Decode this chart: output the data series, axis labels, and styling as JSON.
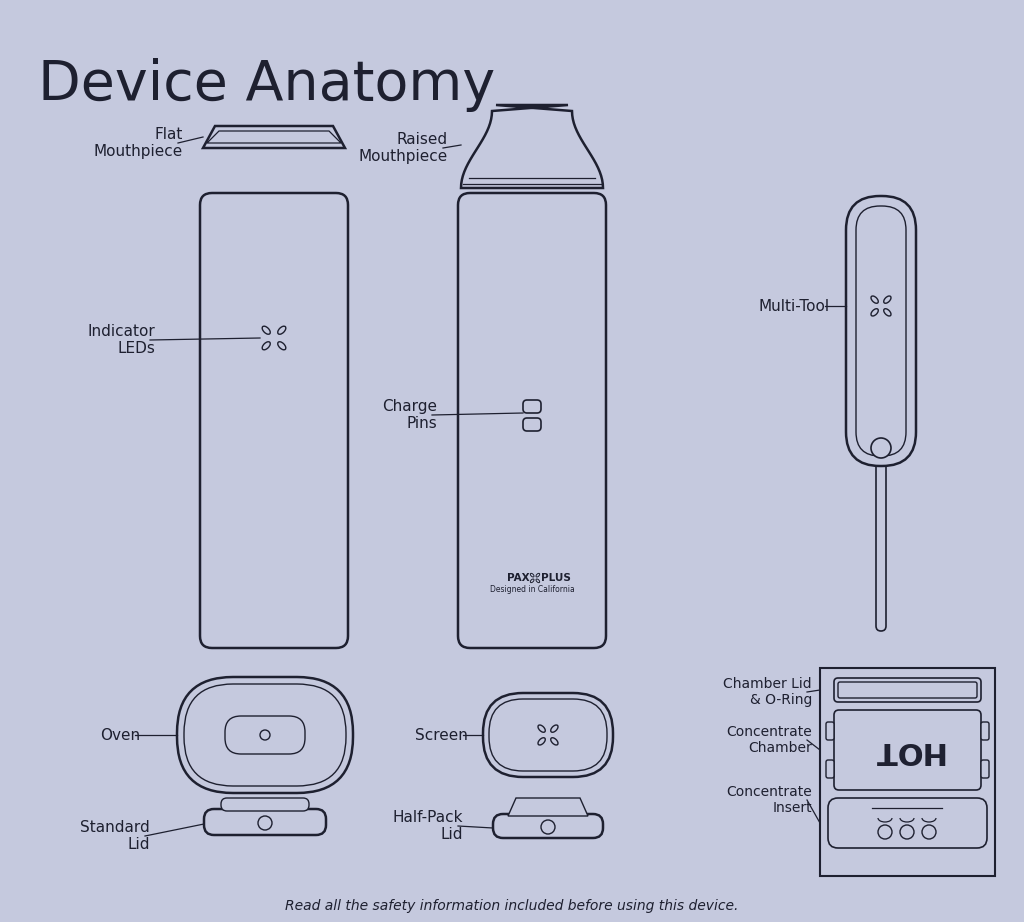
{
  "title": "Device Anatomy",
  "background_color": "#c5c9de",
  "outline_color": "#1e2030",
  "line_color": "#1e2030",
  "text_color": "#1e2030",
  "footer_text": "Read all the safety information included before using this device.",
  "labels": {
    "flat_mouthpiece": "Flat\nMouthpiece",
    "raised_mouthpiece": "Raised\nMouthpiece",
    "indicator_leds": "Indicator\nLEDs",
    "charge_pins": "Charge\nPins",
    "multi_tool": "Multi-Tool",
    "oven": "Oven",
    "screen": "Screen",
    "standard_lid": "Standard\nLid",
    "half_pack_lid": "Half-Pack\nLid",
    "chamber_lid": "Chamber Lid\n& O-Ring",
    "concentrate_chamber": "Concentrate\nChamber",
    "concentrate_insert": "Concentrate\nInsert"
  },
  "pax_text": "PAX PLUS",
  "pax_sub": "Designed in California"
}
